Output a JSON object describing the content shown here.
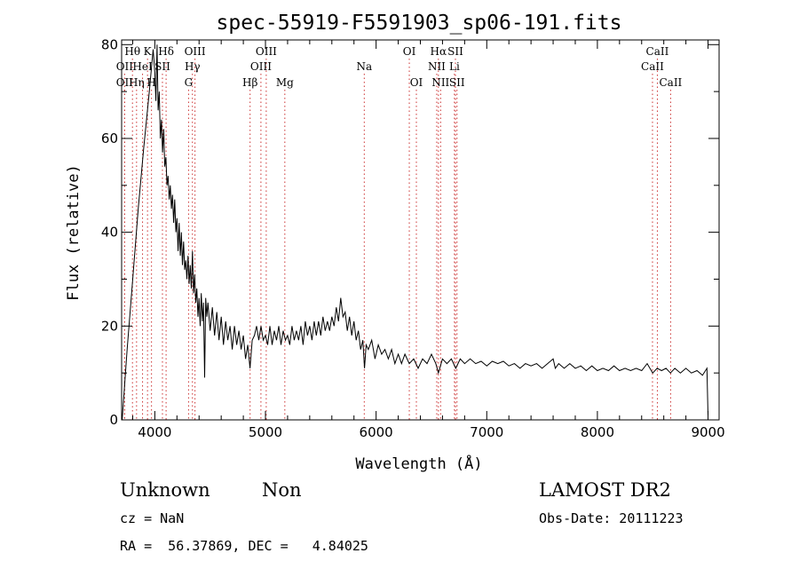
{
  "chart_data": {
    "type": "line",
    "title": "spec-55919-F5591903_sp06-191.fits",
    "xlabel": "Wavelength (Å)",
    "ylabel": "Flux (relative)",
    "xlim": [
      3700,
      9100
    ],
    "ylim": [
      0,
      81
    ],
    "xticks": [
      4000,
      5000,
      6000,
      7000,
      8000,
      9000
    ],
    "yticks": [
      0,
      20,
      40,
      60,
      80
    ],
    "grid": false,
    "series": [
      {
        "values": [
          [
            3705,
            0
          ],
          [
            3750,
            15
          ],
          [
            3800,
            30
          ],
          [
            3850,
            45
          ],
          [
            3900,
            58
          ],
          [
            3950,
            70
          ],
          [
            3985,
            79
          ],
          [
            4000,
            74
          ],
          [
            4010,
            68
          ],
          [
            4020,
            80
          ],
          [
            4030,
            66
          ],
          [
            4040,
            70
          ],
          [
            4050,
            60
          ],
          [
            4060,
            64
          ],
          [
            4070,
            57
          ],
          [
            4080,
            62
          ],
          [
            4090,
            54
          ],
          [
            4100,
            56
          ],
          [
            4110,
            50
          ],
          [
            4120,
            52
          ],
          [
            4130,
            47
          ],
          [
            4140,
            50
          ],
          [
            4150,
            45
          ],
          [
            4160,
            48
          ],
          [
            4170,
            42
          ],
          [
            4180,
            47
          ],
          [
            4190,
            40
          ],
          [
            4200,
            43
          ],
          [
            4210,
            36
          ],
          [
            4220,
            42
          ],
          [
            4230,
            35
          ],
          [
            4240,
            40
          ],
          [
            4250,
            33
          ],
          [
            4260,
            38
          ],
          [
            4270,
            32
          ],
          [
            4280,
            34
          ],
          [
            4290,
            30
          ],
          [
            4300,
            35
          ],
          [
            4310,
            29
          ],
          [
            4320,
            33
          ],
          [
            4330,
            28
          ],
          [
            4340,
            36
          ],
          [
            4350,
            27
          ],
          [
            4360,
            31
          ],
          [
            4370,
            25
          ],
          [
            4380,
            28
          ],
          [
            4390,
            22
          ],
          [
            4400,
            26
          ],
          [
            4410,
            20
          ],
          [
            4420,
            27
          ],
          [
            4430,
            21
          ],
          [
            4440,
            25
          ],
          [
            4450,
            9
          ],
          [
            4460,
            26
          ],
          [
            4470,
            22
          ],
          [
            4480,
            25
          ],
          [
            4500,
            19
          ],
          [
            4520,
            24
          ],
          [
            4540,
            18
          ],
          [
            4560,
            23
          ],
          [
            4580,
            17
          ],
          [
            4600,
            22
          ],
          [
            4620,
            16
          ],
          [
            4640,
            21
          ],
          [
            4660,
            17
          ],
          [
            4680,
            20
          ],
          [
            4700,
            15
          ],
          [
            4720,
            20
          ],
          [
            4740,
            16
          ],
          [
            4760,
            19
          ],
          [
            4780,
            15
          ],
          [
            4800,
            18
          ],
          [
            4820,
            13
          ],
          [
            4840,
            16
          ],
          [
            4860,
            11
          ],
          [
            4880,
            17
          ],
          [
            4900,
            18
          ],
          [
            4920,
            20
          ],
          [
            4940,
            17
          ],
          [
            4960,
            20
          ],
          [
            4980,
            17
          ],
          [
            5000,
            18
          ],
          [
            5020,
            16
          ],
          [
            5040,
            20
          ],
          [
            5060,
            16
          ],
          [
            5080,
            19
          ],
          [
            5100,
            17
          ],
          [
            5120,
            20
          ],
          [
            5140,
            16
          ],
          [
            5160,
            19
          ],
          [
            5180,
            17
          ],
          [
            5200,
            18
          ],
          [
            5220,
            16
          ],
          [
            5240,
            20
          ],
          [
            5260,
            17
          ],
          [
            5280,
            19
          ],
          [
            5300,
            17
          ],
          [
            5320,
            20
          ],
          [
            5340,
            16
          ],
          [
            5360,
            21
          ],
          [
            5380,
            18
          ],
          [
            5400,
            20
          ],
          [
            5420,
            17
          ],
          [
            5440,
            21
          ],
          [
            5460,
            18
          ],
          [
            5480,
            21
          ],
          [
            5500,
            18
          ],
          [
            5520,
            22
          ],
          [
            5540,
            19
          ],
          [
            5560,
            21
          ],
          [
            5580,
            19
          ],
          [
            5600,
            22
          ],
          [
            5620,
            20
          ],
          [
            5640,
            24
          ],
          [
            5660,
            21
          ],
          [
            5680,
            26
          ],
          [
            5700,
            22
          ],
          [
            5720,
            23
          ],
          [
            5740,
            19
          ],
          [
            5760,
            22
          ],
          [
            5780,
            18
          ],
          [
            5800,
            21
          ],
          [
            5820,
            17
          ],
          [
            5840,
            19
          ],
          [
            5860,
            15
          ],
          [
            5880,
            17
          ],
          [
            5895,
            11
          ],
          [
            5910,
            16
          ],
          [
            5930,
            15
          ],
          [
            5960,
            17
          ],
          [
            5990,
            13
          ],
          [
            6020,
            16
          ],
          [
            6050,
            14
          ],
          [
            6080,
            15
          ],
          [
            6110,
            13
          ],
          [
            6140,
            15
          ],
          [
            6170,
            12
          ],
          [
            6200,
            14
          ],
          [
            6230,
            12
          ],
          [
            6260,
            14
          ],
          [
            6300,
            12
          ],
          [
            6340,
            13
          ],
          [
            6380,
            11
          ],
          [
            6420,
            13
          ],
          [
            6460,
            12
          ],
          [
            6500,
            14
          ],
          [
            6540,
            12
          ],
          [
            6563,
            10
          ],
          [
            6600,
            13
          ],
          [
            6640,
            12
          ],
          [
            6680,
            13
          ],
          [
            6720,
            11
          ],
          [
            6760,
            13
          ],
          [
            6800,
            12
          ],
          [
            6850,
            13
          ],
          [
            6900,
            12
          ],
          [
            6950,
            12.5
          ],
          [
            7000,
            11.5
          ],
          [
            7050,
            12.5
          ],
          [
            7100,
            12
          ],
          [
            7150,
            12.5
          ],
          [
            7200,
            11.5
          ],
          [
            7250,
            12
          ],
          [
            7300,
            11
          ],
          [
            7350,
            12
          ],
          [
            7400,
            11.5
          ],
          [
            7450,
            12
          ],
          [
            7500,
            11
          ],
          [
            7550,
            12
          ],
          [
            7600,
            13
          ],
          [
            7620,
            11
          ],
          [
            7650,
            12
          ],
          [
            7700,
            11
          ],
          [
            7750,
            12
          ],
          [
            7800,
            11
          ],
          [
            7850,
            11.5
          ],
          [
            7900,
            10.5
          ],
          [
            7950,
            11.5
          ],
          [
            8000,
            10.5
          ],
          [
            8050,
            11
          ],
          [
            8100,
            10.5
          ],
          [
            8150,
            11.5
          ],
          [
            8200,
            10.5
          ],
          [
            8250,
            11
          ],
          [
            8300,
            10.5
          ],
          [
            8350,
            11
          ],
          [
            8400,
            10.5
          ],
          [
            8450,
            12
          ],
          [
            8500,
            10
          ],
          [
            8540,
            11
          ],
          [
            8580,
            10.5
          ],
          [
            8620,
            11
          ],
          [
            8660,
            10
          ],
          [
            8700,
            11
          ],
          [
            8750,
            10
          ],
          [
            8800,
            11
          ],
          [
            8850,
            10
          ],
          [
            8900,
            10.5
          ],
          [
            8950,
            9.5
          ],
          [
            8990,
            11
          ],
          [
            9000,
            1
          ]
        ]
      }
    ],
    "line_markers": [
      {
        "label": "Hθ",
        "x": 3798,
        "row": 1
      },
      {
        "label": "K",
        "x": 3934,
        "row": 1
      },
      {
        "label": "Hδ",
        "x": 4102,
        "row": 1
      },
      {
        "label": "OIII",
        "x": 4363,
        "row": 1
      },
      {
        "label": "OIII",
        "x": 5007,
        "row": 1
      },
      {
        "label": "OI",
        "x": 6300,
        "row": 1
      },
      {
        "label": "Hα",
        "x": 6563,
        "row": 1
      },
      {
        "label": "SII",
        "x": 6717,
        "row": 1
      },
      {
        "label": "CaII",
        "x": 8542,
        "row": 1
      },
      {
        "label": "OII",
        "x": 3727,
        "row": 2
      },
      {
        "label": "HeI",
        "x": 3889,
        "row": 2
      },
      {
        "label": "SII",
        "x": 4069,
        "row": 2
      },
      {
        "label": "Hγ",
        "x": 4340,
        "row": 2
      },
      {
        "label": "OIII",
        "x": 4959,
        "row": 2
      },
      {
        "label": "Na",
        "x": 5893,
        "row": 2
      },
      {
        "label": "NII",
        "x": 6548,
        "row": 2
      },
      {
        "label": "Li",
        "x": 6708,
        "row": 2
      },
      {
        "label": "CaII",
        "x": 8498,
        "row": 2
      },
      {
        "label": "OII",
        "x": 3727,
        "row": 3
      },
      {
        "label": "Hη",
        "x": 3835,
        "row": 3
      },
      {
        "label": "H",
        "x": 3970,
        "row": 3
      },
      {
        "label": "G",
        "x": 4305,
        "row": 3
      },
      {
        "label": "Hβ",
        "x": 4861,
        "row": 3
      },
      {
        "label": "Mg",
        "x": 5175,
        "row": 3
      },
      {
        "label": "OI",
        "x": 6364,
        "row": 3
      },
      {
        "label": "NII",
        "x": 6583,
        "row": 3
      },
      {
        "label": "SII",
        "x": 6731,
        "row": 3
      },
      {
        "label": "CaII",
        "x": 8662,
        "row": 3
      }
    ]
  },
  "info": {
    "class": "Unknown",
    "subclass": "Non",
    "survey": "LAMOST DR2",
    "cz": "cz = NaN",
    "obs_date": "Obs-Date: 20111223",
    "coords": "RA =  56.37869, DEC =   4.84025"
  },
  "colors": {
    "spectrum": "#000000",
    "line_marker": "#cc3333",
    "text": "#000000"
  }
}
